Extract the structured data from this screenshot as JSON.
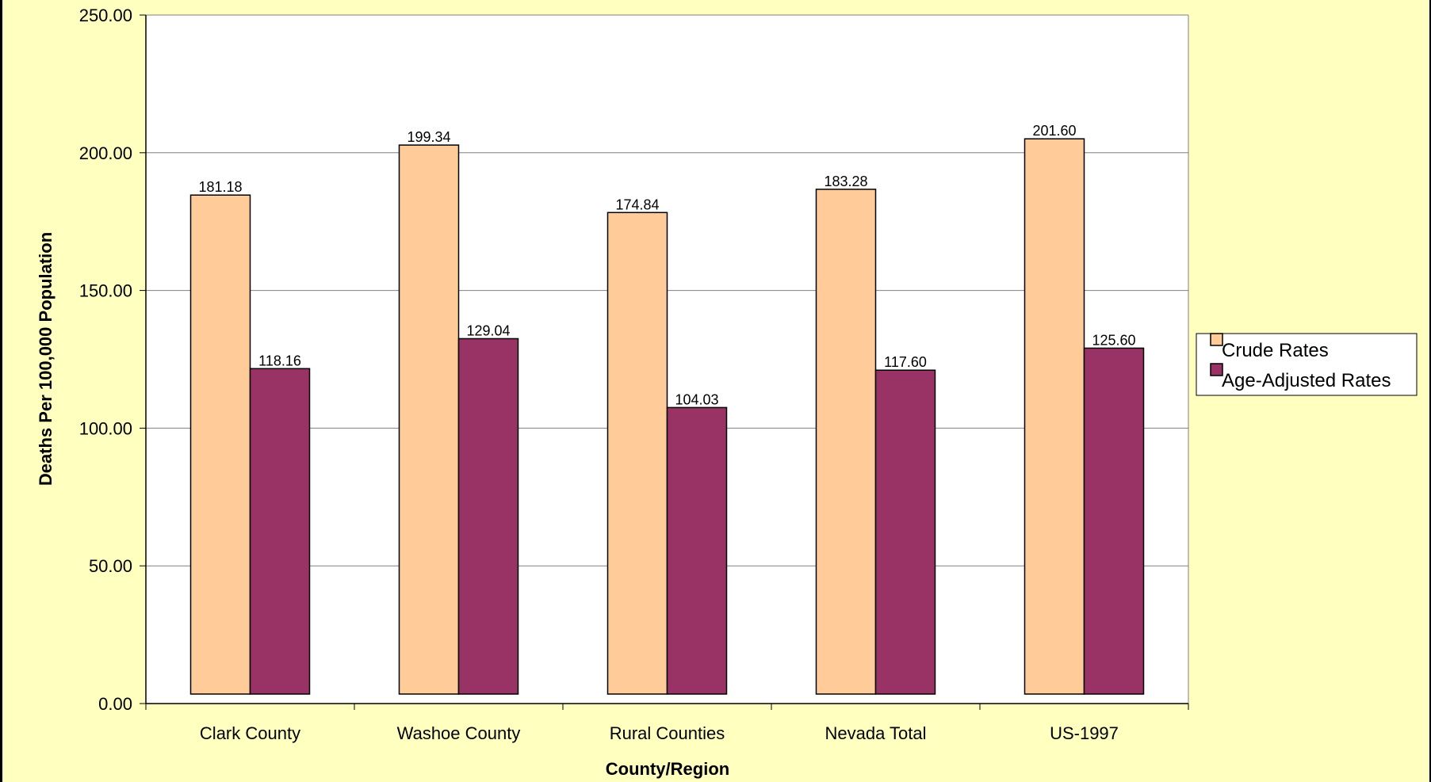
{
  "chart_data": {
    "type": "bar",
    "title": "",
    "xlabel": "County/Region",
    "ylabel": "Deaths Per 100,000 Population",
    "ylim": [
      0,
      250
    ],
    "yticks": [
      "0.00",
      "50.00",
      "100.00",
      "150.00",
      "200.00",
      "250.00"
    ],
    "grid": true,
    "legend_position": "right",
    "categories": [
      "Clark County",
      "Washoe County",
      "Rural Counties",
      "Nevada Total",
      "US-1997"
    ],
    "series": [
      {
        "name": "Crude Rates",
        "color": "#ffcc99",
        "values": [
          181.18,
          199.34,
          174.84,
          183.28,
          201.6
        ],
        "labels": [
          "181.18",
          "199.34",
          "174.84",
          "183.28",
          "201.60"
        ]
      },
      {
        "name": "Age-Adjusted Rates",
        "color": "#993366",
        "values": [
          118.16,
          129.04,
          104.03,
          117.6,
          125.6
        ],
        "labels": [
          "118.16",
          "129.04",
          "104.03",
          "117.60",
          "125.60"
        ]
      }
    ],
    "plot_background": "#ffffff",
    "chart_background": "#ffffc0"
  }
}
